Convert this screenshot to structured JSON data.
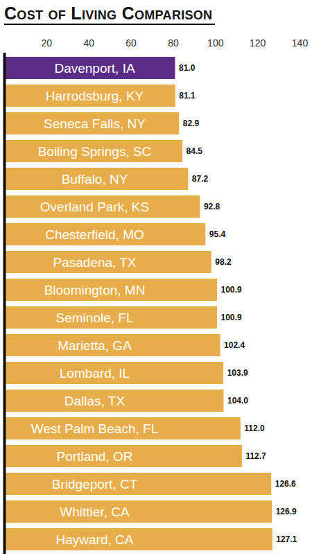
{
  "chart_data": {
    "type": "bar",
    "title": "Cost of Living Comparison",
    "orientation": "horizontal",
    "categories": [
      "Davenport, IA",
      "Harrodsburg, KY",
      "Seneca Falls, NY",
      "Boiling Springs, SC",
      "Buffalo, NY",
      "Overland Park, KS",
      "Chesterfield, MO",
      "Pasadena, TX",
      "Bloomington, MN",
      "Seminole, FL",
      "Marietta, GA",
      "Lombard, IL",
      "Dallas, TX",
      "West Palm Beach, FL",
      "Portland, OR",
      "Bridgeport, CT",
      "Whittier, CA",
      "Hayward, CA"
    ],
    "values": [
      81.0,
      81.1,
      82.9,
      84.5,
      87.2,
      92.8,
      95.4,
      98.2,
      100.9,
      100.9,
      102.4,
      103.9,
      104.0,
      112.0,
      112.7,
      126.6,
      126.9,
      127.1
    ],
    "value_labels": [
      "81.0",
      "81.1",
      "82.9",
      "84.5",
      "87.2",
      "92.8",
      "95.4",
      "98.2",
      "100.9",
      "100.9",
      "102.4",
      "103.9",
      "104.0",
      "112.0",
      "112.7",
      "126.6",
      "126.9",
      "127.1"
    ],
    "colors": [
      "#5c2d86",
      "#e8ad4b",
      "#e8ad4b",
      "#e8ad4b",
      "#e8ad4b",
      "#e8ad4b",
      "#e8ad4b",
      "#e8ad4b",
      "#e8ad4b",
      "#e8ad4b",
      "#e8ad4b",
      "#e8ad4b",
      "#e8ad4b",
      "#e8ad4b",
      "#e8ad4b",
      "#e8ad4b",
      "#e8ad4b",
      "#e8ad4b"
    ],
    "xlim": [
      0,
      140
    ],
    "xticks": [
      20,
      40,
      60,
      80,
      100,
      120,
      140
    ],
    "data_labels": true,
    "grid": false
  }
}
